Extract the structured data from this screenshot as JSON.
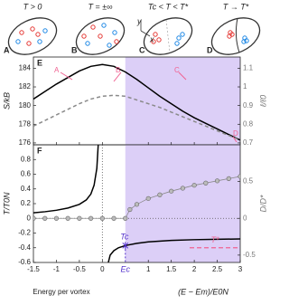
{
  "panels": [
    {
      "letter": "A",
      "label": "T > 0"
    },
    {
      "letter": "B",
      "label": "T = ±∞"
    },
    {
      "letter": "C",
      "label": "Tc < T < T*",
      "axes": [
        "y",
        "x"
      ]
    },
    {
      "letter": "D",
      "label": "T → T*"
    }
  ],
  "chart_data": [
    {
      "type": "line",
      "panel_label": "E",
      "ylabel": "S/kB",
      "y2label": "ℓ/ℓ0",
      "xlim": [
        -1.5,
        3
      ],
      "ylim": [
        175.8,
        185.2
      ],
      "yticks": [
        176,
        178,
        180,
        182,
        184
      ],
      "y2lim": [
        0.69,
        1.16
      ],
      "y2ticks": [
        0.7,
        0.8,
        0.9,
        1,
        1.1
      ],
      "shade": [
        0.5,
        3
      ],
      "shade_color": "#dccff7",
      "annotations": [
        "A",
        "B",
        "C",
        "D"
      ],
      "annotation_color": "#f06292",
      "series": [
        {
          "color": "#000000",
          "x": [
            -1.5,
            -1.25,
            -1,
            -0.75,
            -0.5,
            -0.25,
            0,
            0.25,
            0.5,
            0.75,
            1,
            1.25,
            1.5,
            1.75,
            2,
            2.25,
            2.5,
            2.75,
            3
          ],
          "values": [
            180.7,
            181.5,
            182.3,
            183.0,
            183.7,
            184.2,
            184.4,
            184.2,
            183.6,
            182.8,
            181.9,
            181.0,
            180.2,
            179.4,
            178.7,
            178.1,
            177.5,
            176.9,
            176.3
          ]
        },
        {
          "color": "#8a8a8a",
          "dash": true,
          "axis": "y2",
          "x": [
            -1.5,
            -1.25,
            -1,
            -0.75,
            -0.5,
            -0.25,
            0,
            0.25,
            0.5,
            0.75,
            1,
            1.25,
            1.5,
            1.75,
            2,
            2.25,
            2.5,
            2.75,
            3
          ],
          "values": [
            0.79,
            0.82,
            0.85,
            0.88,
            0.91,
            0.935,
            0.95,
            0.955,
            0.95,
            0.93,
            0.91,
            0.89,
            0.865,
            0.84,
            0.815,
            0.79,
            0.765,
            0.74,
            0.715
          ]
        }
      ]
    },
    {
      "type": "line",
      "panel_label": "F",
      "ylabel": "T/T0N",
      "y2label": "D/D*",
      "xlabel": "Energy per vortex",
      "xlabel2": "(E − Em)/E0N",
      "xlim": [
        -1.5,
        3
      ],
      "xticks": [
        -1.5,
        -1,
        -0.5,
        0,
        1,
        1.5,
        2,
        2.5,
        3
      ],
      "ylim": [
        -0.6,
        1.0
      ],
      "yticks": [
        -0.6,
        -0.4,
        -0.2,
        0,
        0.2,
        0.4,
        0.6,
        0.8
      ],
      "y2lim": [
        -0.6,
        1.0
      ],
      "y2ticks": [
        -0.5,
        0,
        0.5
      ],
      "shade": [
        0.5,
        3
      ],
      "shade_color": "#dccff7",
      "vline": 0,
      "hline": 0,
      "critical": {
        "x": 0.5,
        "y": -0.37,
        "label": "Ec",
        "point_label": "Tc",
        "color": "#5533cc"
      },
      "t_star": {
        "y": -0.4,
        "x": [
          1.9,
          3
        ],
        "label": "T*",
        "color": "#f06292"
      },
      "series": [
        {
          "color": "#000000",
          "x": [
            -1.5,
            -1.25,
            -1,
            -0.75,
            -0.5,
            -0.35,
            -0.25,
            -0.18,
            -0.12,
            -0.09,
            0,
            0.13,
            0.17,
            0.25,
            0.35,
            0.5,
            0.75,
            1,
            1.5,
            2,
            2.5,
            3
          ],
          "values": [
            0.075,
            0.09,
            0.11,
            0.14,
            0.19,
            0.25,
            0.33,
            0.45,
            0.68,
            1.0,
            null,
            -0.6,
            -0.5,
            -0.44,
            -0.4,
            -0.37,
            -0.34,
            -0.32,
            -0.3,
            -0.29,
            -0.285,
            -0.28
          ]
        },
        {
          "color": "#8a8a8a",
          "marker": "circle",
          "axis": "y2",
          "x": [
            -1.5,
            -1.25,
            -1,
            -0.75,
            -0.5,
            -0.25,
            0,
            0.25,
            0.5,
            0.6,
            0.75,
            1,
            1.25,
            1.5,
            1.75,
            2,
            2.25,
            2.5,
            2.75,
            3
          ],
          "values": [
            0,
            0,
            0,
            0,
            0,
            0,
            0,
            0,
            0,
            0.12,
            0.19,
            0.27,
            0.32,
            0.37,
            0.41,
            0.45,
            0.48,
            0.51,
            0.54,
            0.57
          ]
        }
      ]
    }
  ]
}
